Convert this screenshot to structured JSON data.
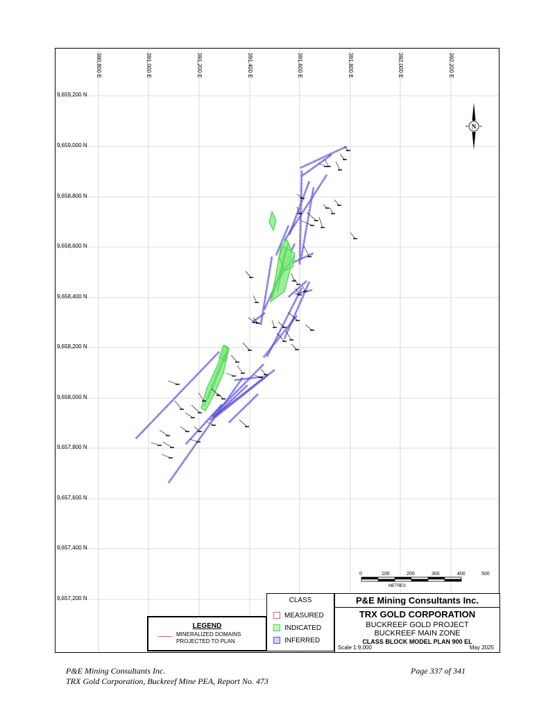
{
  "map": {
    "easting_ticks": [
      "390,800 E",
      "391,000 E",
      "391,200 E",
      "391,400 E",
      "391,600 E",
      "391,800 E",
      "392,000 E",
      "392,200 E"
    ],
    "northing_ticks": [
      "9,659,200 N",
      "9,659,000 N",
      "9,658,800 N",
      "9,658,600 N",
      "9,658,400 N",
      "9,658,200 N",
      "9,658,000 N",
      "9,657,800 N",
      "9,657,600 N",
      "9,657,400 N",
      "9,657,200 N"
    ],
    "north_arrow_label": "N",
    "colors": {
      "inferred": "#5a4fd8",
      "indicated": "#3fd83f",
      "measured": "#e06060",
      "drillhole": "#000000"
    }
  },
  "scale_bar": {
    "labels": [
      "0",
      "100",
      "200",
      "300",
      "400",
      "500"
    ],
    "unit": "METRES"
  },
  "legend": {
    "title": "LEGEND",
    "item": "MINERALIZED DOMAINS\nPROJECTED TO PLAN"
  },
  "class_legend": {
    "title": "CLASS",
    "items": [
      {
        "label": "MEASURED",
        "color": "#e06060"
      },
      {
        "label": "INDICATED",
        "color": "#3fd83f"
      },
      {
        "label": "INFERRED",
        "color": "#5a4fd8"
      }
    ]
  },
  "title_block": {
    "company": "P&E Mining Consultants Inc.",
    "client": "TRX GOLD CORPORATION",
    "project": "BUCKREEF GOLD PROJECT",
    "zone": "BUCKREEF MAIN ZONE",
    "plan": "CLASS BLOCK MODEL PLAN 900 EL",
    "scale": "Scale 1:9,000",
    "date": "May 2025"
  },
  "footer": {
    "left_line1": "P&E Mining Consultants Inc.",
    "left_line2": "TRX Gold Corporation, Buckreef Mine PEA, Report No. 473",
    "right": "Page 337 of 341"
  }
}
